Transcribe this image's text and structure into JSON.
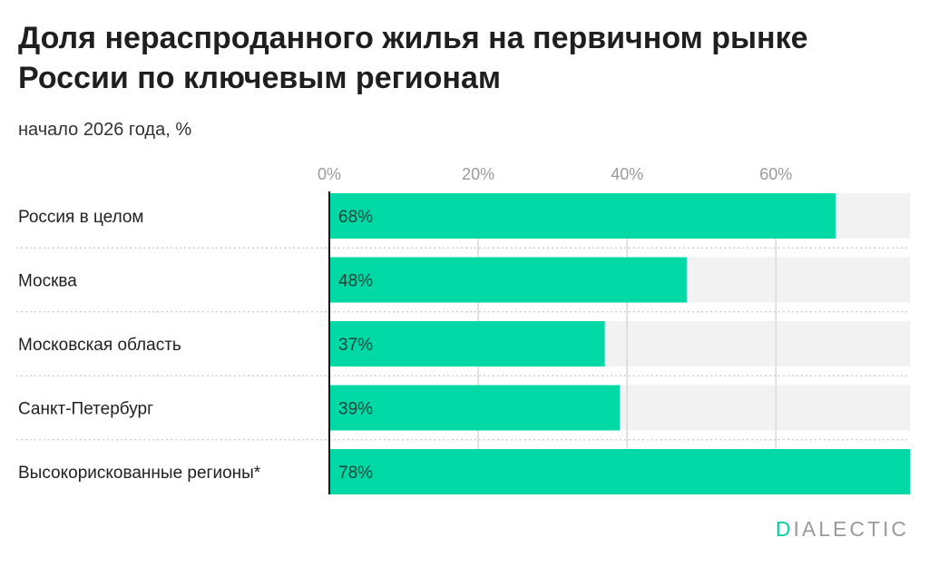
{
  "title": "Доля нераспроданного жилья на первичном рынке России по ключевым регионам",
  "subtitle": "начало 2026 года, %",
  "brand": {
    "first_letter": "D",
    "rest": "IALECTIC"
  },
  "colors": {
    "bar": "#00d9a6",
    "track": "#f2f2f2",
    "grid": "#d9d9d9",
    "axis": "#111111",
    "accent": "#00d5a0"
  },
  "chart_data": {
    "type": "bar",
    "orientation": "horizontal",
    "categories": [
      "Россия в целом",
      "Москва",
      "Московская область",
      "Санкт-Петербург",
      "Высокорискованные регионы*"
    ],
    "values": [
      68,
      48,
      37,
      39,
      78
    ],
    "value_labels": [
      "68%",
      "48%",
      "37%",
      "39%",
      "78%"
    ],
    "xlim": [
      0,
      78
    ],
    "ticks": [
      0,
      20,
      40,
      60
    ],
    "tick_labels": [
      "0%",
      "20%",
      "40%",
      "60%"
    ],
    "grid": true,
    "axis_position": "top"
  }
}
